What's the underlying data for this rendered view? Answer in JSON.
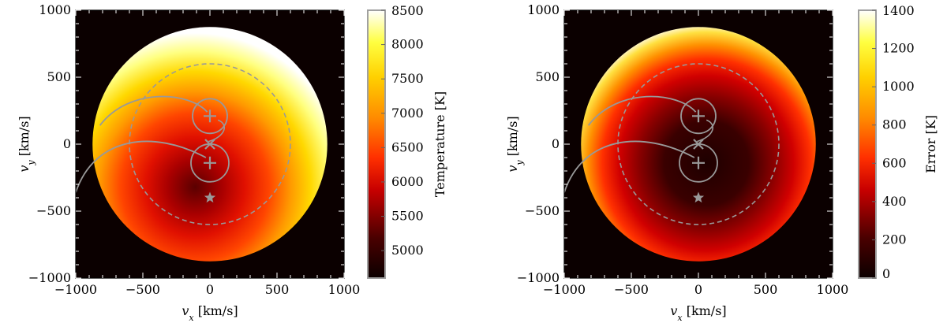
{
  "chart_data": [
    {
      "type": "heatmap",
      "title": "",
      "xlabel": "v_x [km/s]",
      "ylabel": "v_y [km/s]",
      "xlim": [
        -1000,
        1000
      ],
      "ylim": [
        -1000,
        1000
      ],
      "xticks": [
        "−1000",
        "−500",
        "0",
        "500",
        "1000"
      ],
      "yticks": [
        "1000",
        "500",
        "0",
        "−500",
        "−1000"
      ],
      "map_disk_radius": 875,
      "colorbar": {
        "label": "Temperature [K]",
        "range": [
          4600,
          8500
        ],
        "ticks": [
          "8500",
          "8000",
          "7500",
          "7000",
          "6500",
          "6000",
          "5500",
          "5000"
        ],
        "tick_values": [
          8500,
          8000,
          7500,
          7000,
          6500,
          6000,
          5500,
          5000
        ]
      },
      "overlays": {
        "dashed_circle_radius": 600,
        "plus_markers": [
          [
            0,
            210
          ],
          [
            0,
            -140
          ]
        ],
        "cross_marker": [
          0,
          0
        ],
        "star_marker": [
          0,
          -400
        ]
      }
    },
    {
      "type": "heatmap",
      "title": "",
      "xlabel": "v_x [km/s]",
      "ylabel": "v_y [km/s]",
      "xlim": [
        -1000,
        1000
      ],
      "ylim": [
        -1000,
        1000
      ],
      "xticks": [
        "−1000",
        "−500",
        "0",
        "500",
        "1000"
      ],
      "yticks": [
        "1000",
        "500",
        "0",
        "−500",
        "−1000"
      ],
      "map_disk_radius": 875,
      "colorbar": {
        "label": "Error [K]",
        "range": [
          0,
          1400
        ],
        "ticks": [
          "1400",
          "1200",
          "1000",
          "800",
          "600",
          "400",
          "200",
          "0"
        ],
        "tick_values": [
          1400,
          1200,
          1000,
          800,
          600,
          400,
          200,
          0
        ]
      },
      "overlays": {
        "dashed_circle_radius": 600,
        "plus_markers": [
          [
            0,
            210
          ],
          [
            0,
            -140
          ]
        ],
        "cross_marker": [
          0,
          0
        ],
        "star_marker": [
          0,
          -400
        ]
      }
    }
  ],
  "colors": {
    "background_map": "#0b0000",
    "overlay_gray": "#999999",
    "axis_frame": "#000000",
    "colorbar_frame": "#a0a0a0"
  }
}
